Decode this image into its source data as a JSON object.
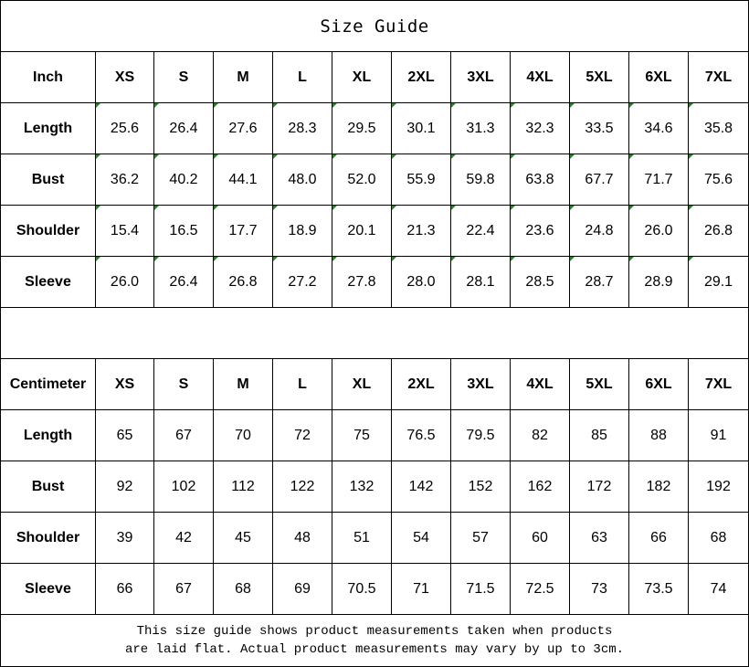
{
  "title": "Size Guide",
  "sizes": [
    "XS",
    "S",
    "M",
    "L",
    "XL",
    "2XL",
    "3XL",
    "4XL",
    "5XL",
    "6XL",
    "7XL"
  ],
  "inch": {
    "unit_label": "Inch",
    "rows": [
      {
        "label": "Length",
        "values": [
          "25.6",
          "26.4",
          "27.6",
          "28.3",
          "29.5",
          "30.1",
          "31.3",
          "32.3",
          "33.5",
          "34.6",
          "35.8"
        ]
      },
      {
        "label": "Bust",
        "values": [
          "36.2",
          "40.2",
          "44.1",
          "48.0",
          "52.0",
          "55.9",
          "59.8",
          "63.8",
          "67.7",
          "71.7",
          "75.6"
        ]
      },
      {
        "label": "Shoulder",
        "values": [
          "15.4",
          "16.5",
          "17.7",
          "18.9",
          "20.1",
          "21.3",
          "22.4",
          "23.6",
          "24.8",
          "26.0",
          "26.8"
        ]
      },
      {
        "label": "Sleeve",
        "values": [
          "26.0",
          "26.4",
          "26.8",
          "27.2",
          "27.8",
          "28.0",
          "28.1",
          "28.5",
          "28.7",
          "28.9",
          "29.1"
        ]
      }
    ]
  },
  "centimeter": {
    "unit_label": "Centimeter",
    "rows": [
      {
        "label": "Length",
        "values": [
          "65",
          "67",
          "70",
          "72",
          "75",
          "76.5",
          "79.5",
          "82",
          "85",
          "88",
          "91"
        ]
      },
      {
        "label": "Bust",
        "values": [
          "92",
          "102",
          "112",
          "122",
          "132",
          "142",
          "152",
          "162",
          "172",
          "182",
          "192"
        ]
      },
      {
        "label": "Shoulder",
        "values": [
          "39",
          "42",
          "45",
          "48",
          "51",
          "54",
          "57",
          "60",
          "63",
          "66",
          "68"
        ]
      },
      {
        "label": "Sleeve",
        "values": [
          "66",
          "67",
          "68",
          "69",
          "70.5",
          "71",
          "71.5",
          "72.5",
          "73",
          "73.5",
          "74"
        ]
      }
    ]
  },
  "note": {
    "line1": "This size guide shows product measurements taken when products",
    "line2": "are laid flat. Actual product measurements may vary by up to 3cm."
  },
  "colors": {
    "error_marker": "#1a8a1a"
  }
}
